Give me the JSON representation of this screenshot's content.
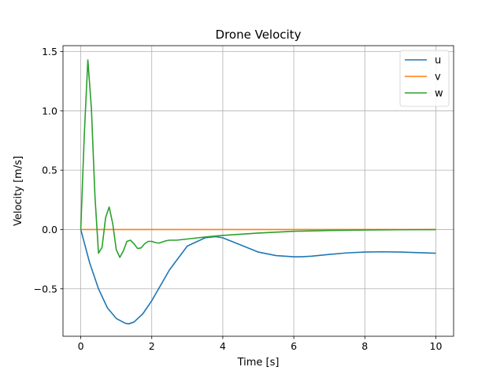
{
  "chart_data": {
    "type": "line",
    "title": "Drone Velocity",
    "xlabel": "Time [s]",
    "ylabel": "Velocity [m/s]",
    "xlim": [
      -0.5,
      10.5
    ],
    "ylim": [
      -0.9,
      1.55
    ],
    "xticks": [
      0,
      2,
      4,
      6,
      8,
      10
    ],
    "xtick_labels": [
      "0",
      "2",
      "4",
      "6",
      "8",
      "10"
    ],
    "yticks": [
      -0.5,
      0.0,
      0.5,
      1.0,
      1.5
    ],
    "ytick_labels": [
      "−0.5",
      "0.0",
      "0.5",
      "1.0",
      "1.5"
    ],
    "grid": true,
    "legend_position": "top-right",
    "series": [
      {
        "name": "u",
        "color": "#1f77b4",
        "x": [
          0,
          0.25,
          0.5,
          0.75,
          1.0,
          1.25,
          1.35,
          1.5,
          1.75,
          2.0,
          2.5,
          3.0,
          3.5,
          3.8,
          4.0,
          4.5,
          5.0,
          5.5,
          6.0,
          6.2,
          6.5,
          7.0,
          7.5,
          8.0,
          8.5,
          9.0,
          9.5,
          10.0
        ],
        "y": [
          0.0,
          -0.28,
          -0.5,
          -0.66,
          -0.75,
          -0.79,
          -0.795,
          -0.78,
          -0.71,
          -0.6,
          -0.34,
          -0.14,
          -0.07,
          -0.06,
          -0.07,
          -0.13,
          -0.19,
          -0.22,
          -0.23,
          -0.23,
          -0.225,
          -0.21,
          -0.197,
          -0.19,
          -0.188,
          -0.19,
          -0.195,
          -0.2
        ]
      },
      {
        "name": "v",
        "color": "#ff7f0e",
        "x": [
          0,
          10
        ],
        "y": [
          0.0,
          0.0
        ]
      },
      {
        "name": "w",
        "color": "#2ca02c",
        "x": [
          0,
          0.1,
          0.2,
          0.3,
          0.4,
          0.5,
          0.6,
          0.7,
          0.8,
          0.9,
          1.0,
          1.1,
          1.2,
          1.3,
          1.4,
          1.5,
          1.6,
          1.7,
          1.8,
          1.9,
          2.0,
          2.1,
          2.2,
          2.3,
          2.4,
          2.5,
          2.7,
          3.0,
          3.3,
          3.6,
          4.0,
          5.0,
          6.0,
          7.0,
          8.0,
          9.0,
          10.0
        ],
        "y": [
          0.0,
          0.8,
          1.43,
          1.02,
          0.28,
          -0.2,
          -0.15,
          0.1,
          0.19,
          0.05,
          -0.17,
          -0.235,
          -0.18,
          -0.1,
          -0.09,
          -0.12,
          -0.16,
          -0.155,
          -0.12,
          -0.1,
          -0.1,
          -0.11,
          -0.115,
          -0.105,
          -0.095,
          -0.09,
          -0.09,
          -0.08,
          -0.07,
          -0.06,
          -0.05,
          -0.03,
          -0.015,
          -0.008,
          -0.004,
          -0.002,
          -0.001
        ]
      }
    ]
  }
}
